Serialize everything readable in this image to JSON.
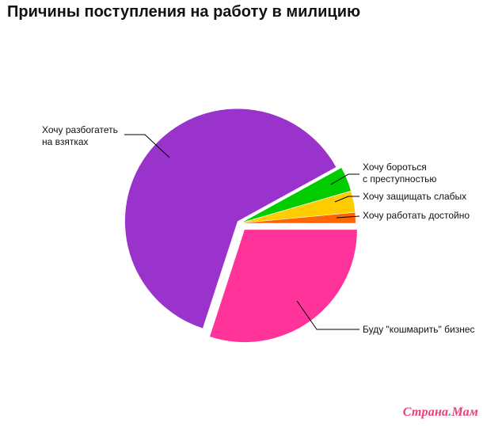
{
  "chart_data": {
    "type": "pie",
    "title": "Причины поступления на работу в милицию",
    "legend": "none",
    "slices": [
      {
        "label": "Буду \"кошмарить\" бизнес",
        "value": 30,
        "color": "#ff3399"
      },
      {
        "label": "Хочу разбогатеть на взятках",
        "lines": [
          "Хочу разбогатеть",
          "на взятках"
        ],
        "value": 62,
        "color": "#9933cc"
      },
      {
        "label": "Хочу бороться с преступностью",
        "lines": [
          "Хочу бороться",
          "с преступностью"
        ],
        "value": 3.5,
        "color": "#00cc00"
      },
      {
        "label": "Хочу защищать слабых",
        "lines": [
          "Хочу защищать слабых"
        ],
        "value": 3,
        "color": "#ffcc00"
      },
      {
        "label": "Хочу работать достойно",
        "lines": [
          "Хочу работать достойно"
        ],
        "value": 1.5,
        "color": "#ff6600"
      }
    ]
  },
  "watermark": {
    "part1": "Страна",
    "sep": ".",
    "part2": "Мам"
  }
}
